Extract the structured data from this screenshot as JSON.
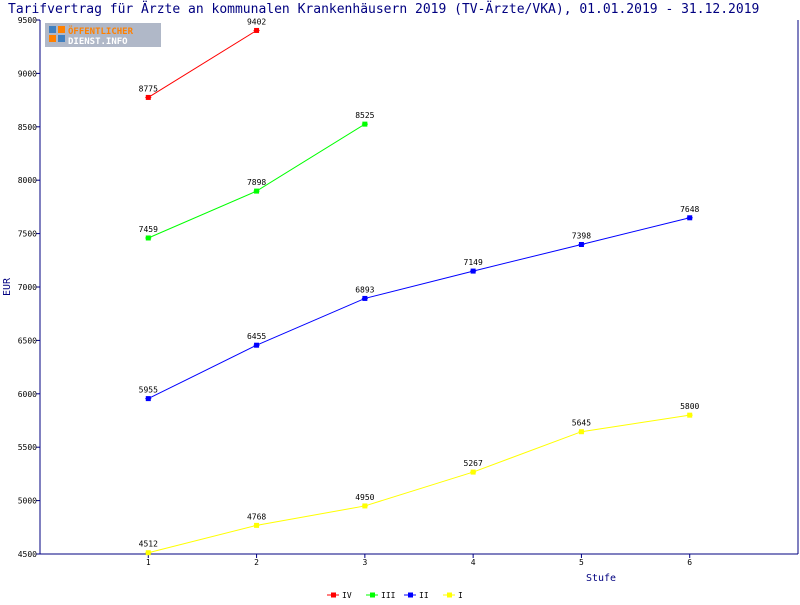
{
  "chart_data": {
    "type": "line",
    "title": "Tarifvertrag für Ärzte an kommunalen Krankenhäusern 2019 (TV-Ärzte/VKA), 01.01.2019 - 31.12.2019",
    "xlabel": "Stufe",
    "ylabel": "EUR",
    "x": [
      1,
      2,
      3,
      4,
      5,
      6
    ],
    "xlim": [
      0,
      7
    ],
    "ylim": [
      4500,
      9500
    ],
    "yticks": [
      4500,
      5000,
      5500,
      6000,
      6500,
      7000,
      7500,
      8000,
      8500,
      9000,
      9500
    ],
    "grid": false,
    "legend_position": "bottom-center",
    "series": [
      {
        "name": "IV",
        "color": "#ff0000",
        "x": [
          1,
          2
        ],
        "values": [
          8775,
          9402
        ]
      },
      {
        "name": "III",
        "color": "#00ff00",
        "x": [
          1,
          2,
          3
        ],
        "values": [
          7459,
          7898,
          8525
        ]
      },
      {
        "name": "II",
        "color": "#0000ff",
        "x": [
          1,
          2,
          3,
          4,
          5,
          6
        ],
        "values": [
          5955,
          6455,
          6893,
          7149,
          7398,
          7648
        ]
      },
      {
        "name": "I",
        "color": "#ffff00",
        "x": [
          1,
          2,
          3,
          4,
          5,
          6
        ],
        "values": [
          4512,
          4768,
          4950,
          5267,
          5645,
          5800
        ]
      }
    ]
  },
  "logo": {
    "line1": "ÖFFENTLICHER",
    "line2": "DIENST.INFO",
    "icon": "grid-squares-icon"
  },
  "colors": {
    "axis": "#000080",
    "title": "#000080",
    "logo_bg": "#b0b8c8",
    "logo_text": "#ff8000"
  }
}
